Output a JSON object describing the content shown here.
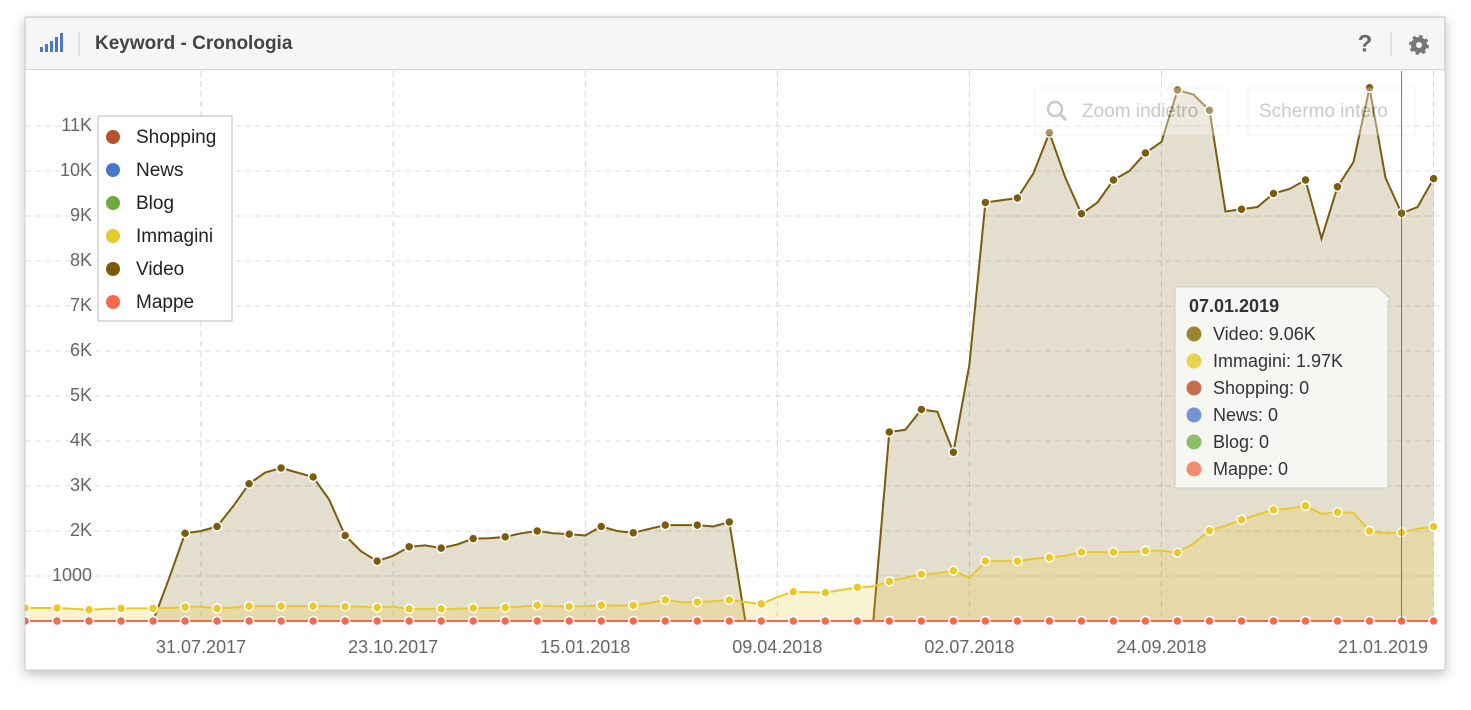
{
  "header": {
    "title": "Keyword - Cronologia",
    "help": "?",
    "buttons": [
      "Zoom indietro",
      "Schermo intero"
    ]
  },
  "chart_data": {
    "type": "area",
    "x": [
      "15.05.2017",
      "22.05.2017",
      "29.05.2017",
      "05.06.2017",
      "12.06.2017",
      "19.06.2017",
      "26.06.2017",
      "03.07.2017",
      "10.07.2017",
      "17.07.2017",
      "24.07.2017",
      "31.07.2017",
      "07.08.2017",
      "14.08.2017",
      "21.08.2017",
      "28.08.2017",
      "04.09.2017",
      "11.09.2017",
      "18.09.2017",
      "25.09.2017",
      "02.10.2017",
      "09.10.2017",
      "16.10.2017",
      "23.10.2017",
      "30.10.2017",
      "06.11.2017",
      "13.11.2017",
      "20.11.2017",
      "27.11.2017",
      "04.12.2017",
      "11.12.2017",
      "18.12.2017",
      "25.12.2017",
      "01.01.2018",
      "08.01.2018",
      "15.01.2018",
      "22.01.2018",
      "29.01.2018",
      "05.02.2018",
      "12.02.2018",
      "19.02.2018",
      "26.02.2018",
      "05.03.2018",
      "12.03.2018",
      "19.03.2018",
      "26.03.2018",
      "02.04.2018",
      "09.04.2018",
      "16.04.2018",
      "23.04.2018",
      "30.04.2018",
      "07.05.2018",
      "14.05.2018",
      "21.05.2018",
      "28.05.2018",
      "04.06.2018",
      "11.06.2018",
      "18.06.2018",
      "25.06.2018",
      "02.07.2018",
      "09.07.2018",
      "16.07.2018",
      "23.07.2018",
      "30.07.2018",
      "06.08.2018",
      "13.08.2018",
      "20.08.2018",
      "27.08.2018",
      "03.09.2018",
      "10.09.2018",
      "17.09.2018",
      "24.09.2018",
      "01.10.2018",
      "08.10.2018",
      "15.10.2018",
      "22.10.2018",
      "29.10.2018",
      "05.11.2018",
      "12.11.2018",
      "19.11.2018",
      "26.11.2018",
      "03.12.2018",
      "10.12.2018",
      "17.12.2018",
      "24.12.2018",
      "31.12.2018",
      "07.01.2019",
      "14.01.2019",
      "21.01.2019"
    ],
    "xlim": [
      "15.05.2017",
      "26.01.2019"
    ],
    "xticks": [
      "31.07.2017",
      "23.10.2017",
      "15.01.2018",
      "09.04.2018",
      "02.07.2018",
      "24.09.2018",
      "21.01.2019"
    ],
    "ylim": [
      0,
      12000
    ],
    "yticks": [
      {
        "value": 1000,
        "label": "1000"
      },
      {
        "value": 2000,
        "label": "2K"
      },
      {
        "value": 3000,
        "label": "3K"
      },
      {
        "value": 4000,
        "label": "4K"
      },
      {
        "value": 5000,
        "label": "5K"
      },
      {
        "value": 6000,
        "label": "6K"
      },
      {
        "value": 7000,
        "label": "7K"
      },
      {
        "value": 8000,
        "label": "8K"
      },
      {
        "value": 9000,
        "label": "9K"
      },
      {
        "value": 10000,
        "label": "10K"
      },
      {
        "value": 11000,
        "label": "11K"
      }
    ],
    "grid": true,
    "legend": "top-left",
    "series": [
      {
        "name": "Shopping",
        "color": "#b5532e",
        "values": [
          0,
          0,
          0,
          0,
          0,
          0,
          0,
          0,
          0,
          0,
          0,
          0,
          0,
          0,
          0,
          0,
          0,
          0,
          0,
          0,
          0,
          0,
          0,
          0,
          0,
          0,
          0,
          0,
          0,
          0,
          0,
          0,
          0,
          0,
          0,
          0,
          0,
          0,
          0,
          0,
          0,
          0,
          0,
          0,
          0,
          0,
          0,
          0,
          0,
          0,
          0,
          0,
          0,
          0,
          0,
          0,
          0,
          0,
          0,
          0,
          0,
          0,
          0,
          0,
          0,
          0,
          0,
          0,
          0,
          0,
          0,
          0,
          0,
          0,
          0,
          0,
          0,
          0,
          0,
          0,
          0,
          0,
          0,
          0,
          0,
          0,
          0,
          0,
          0
        ]
      },
      {
        "name": "News",
        "color": "#4a78c8",
        "values": [
          0,
          0,
          0,
          0,
          0,
          0,
          0,
          0,
          0,
          0,
          0,
          0,
          0,
          0,
          0,
          0,
          0,
          0,
          0,
          0,
          0,
          0,
          0,
          0,
          0,
          0,
          0,
          0,
          0,
          0,
          0,
          0,
          0,
          0,
          0,
          0,
          0,
          0,
          0,
          0,
          0,
          0,
          0,
          0,
          0,
          0,
          0,
          0,
          0,
          0,
          0,
          0,
          0,
          0,
          0,
          0,
          0,
          0,
          0,
          0,
          0,
          0,
          0,
          0,
          0,
          0,
          0,
          0,
          0,
          0,
          0,
          0,
          0,
          0,
          0,
          0,
          0,
          0,
          0,
          0,
          0,
          0,
          0,
          0,
          0,
          0,
          0,
          0,
          0
        ]
      },
      {
        "name": "Blog",
        "color": "#6aab3c",
        "values": [
          0,
          0,
          0,
          0,
          0,
          0,
          0,
          0,
          0,
          0,
          0,
          0,
          0,
          0,
          0,
          0,
          0,
          0,
          0,
          0,
          0,
          0,
          0,
          0,
          0,
          0,
          0,
          0,
          0,
          0,
          0,
          0,
          0,
          0,
          0,
          0,
          0,
          0,
          0,
          0,
          0,
          0,
          0,
          0,
          0,
          0,
          0,
          0,
          0,
          0,
          0,
          0,
          0,
          0,
          0,
          0,
          0,
          0,
          0,
          0,
          0,
          0,
          0,
          0,
          0,
          0,
          0,
          0,
          0,
          0,
          0,
          0,
          0,
          0,
          0,
          0,
          0,
          0,
          0,
          0,
          0,
          0,
          0,
          0,
          0,
          0,
          0,
          0,
          0
        ]
      },
      {
        "name": "Immagini",
        "color": "#e8c92c",
        "values": [
          290,
          290,
          290,
          270,
          250,
          270,
          280,
          280,
          280,
          290,
          310,
          320,
          280,
          300,
          330,
          330,
          330,
          330,
          330,
          330,
          320,
          320,
          300,
          320,
          270,
          270,
          270,
          270,
          290,
          290,
          300,
          320,
          350,
          330,
          320,
          330,
          350,
          340,
          350,
          400,
          470,
          420,
          420,
          440,
          470,
          420,
          380,
          530,
          650,
          640,
          630,
          690,
          750,
          770,
          880,
          960,
          1040,
          1060,
          1120,
          950,
          1330,
          1330,
          1330,
          1380,
          1410,
          1450,
          1530,
          1530,
          1530,
          1530,
          1560,
          1560,
          1520,
          1720,
          2010,
          2120,
          2250,
          2370,
          2470,
          2500,
          2560,
          2380,
          2420,
          2400,
          2000,
          1950,
          1970,
          2050,
          2100
        ]
      },
      {
        "name": "Video",
        "color": "#7a5c0c",
        "values": [
          0,
          0,
          0,
          0,
          0,
          0,
          0,
          0,
          0,
          950,
          1950,
          2000,
          2100,
          2550,
          3050,
          3300,
          3400,
          3300,
          3200,
          2700,
          1900,
          1550,
          1330,
          1450,
          1650,
          1680,
          1620,
          1700,
          1830,
          1840,
          1870,
          1950,
          2000,
          1950,
          1930,
          1900,
          2100,
          2000,
          1960,
          2050,
          2130,
          2130,
          2130,
          2100,
          2200,
          0,
          0,
          0,
          0,
          0,
          0,
          0,
          0,
          0,
          4200,
          4250,
          4700,
          4650,
          3750,
          5700,
          9300,
          9350,
          9400,
          9950,
          10850,
          9850,
          9050,
          9300,
          9800,
          10000,
          10400,
          10650,
          11800,
          11700,
          11350,
          9100,
          9150,
          9200,
          9500,
          9600,
          9800,
          8500,
          9650,
          10200,
          11850,
          9850,
          9060,
          9200,
          9830
        ]
      },
      {
        "name": "Mappe",
        "color": "#f26b4c",
        "values": [
          0,
          0,
          0,
          0,
          0,
          0,
          0,
          0,
          0,
          0,
          0,
          0,
          0,
          0,
          0,
          0,
          0,
          0,
          0,
          0,
          0,
          0,
          0,
          0,
          0,
          0,
          0,
          0,
          0,
          0,
          0,
          0,
          0,
          0,
          0,
          0,
          0,
          0,
          0,
          0,
          0,
          0,
          0,
          0,
          0,
          0,
          0,
          0,
          0,
          0,
          0,
          0,
          0,
          0,
          0,
          0,
          0,
          0,
          0,
          0,
          0,
          0,
          0,
          0,
          0,
          0,
          0,
          0,
          0,
          0,
          0,
          0,
          0,
          0,
          0,
          0,
          0,
          0,
          0,
          0,
          0,
          0,
          0,
          0,
          0,
          0,
          0,
          0,
          0
        ]
      }
    ],
    "tooltip": {
      "date": "07.01.2019",
      "items": [
        {
          "text": "Video: 9.06K",
          "color": "#9b8530"
        },
        {
          "text": "Immagini: 1.97K",
          "color": "#e9d24e"
        },
        {
          "text": "Shopping: 0",
          "color": "#c4704f"
        },
        {
          "text": "News: 0",
          "color": "#7494d2"
        },
        {
          "text": "Blog: 0",
          "color": "#8ebd6a"
        },
        {
          "text": "Mappe: 0",
          "color": "#f48b70"
        }
      ]
    }
  }
}
